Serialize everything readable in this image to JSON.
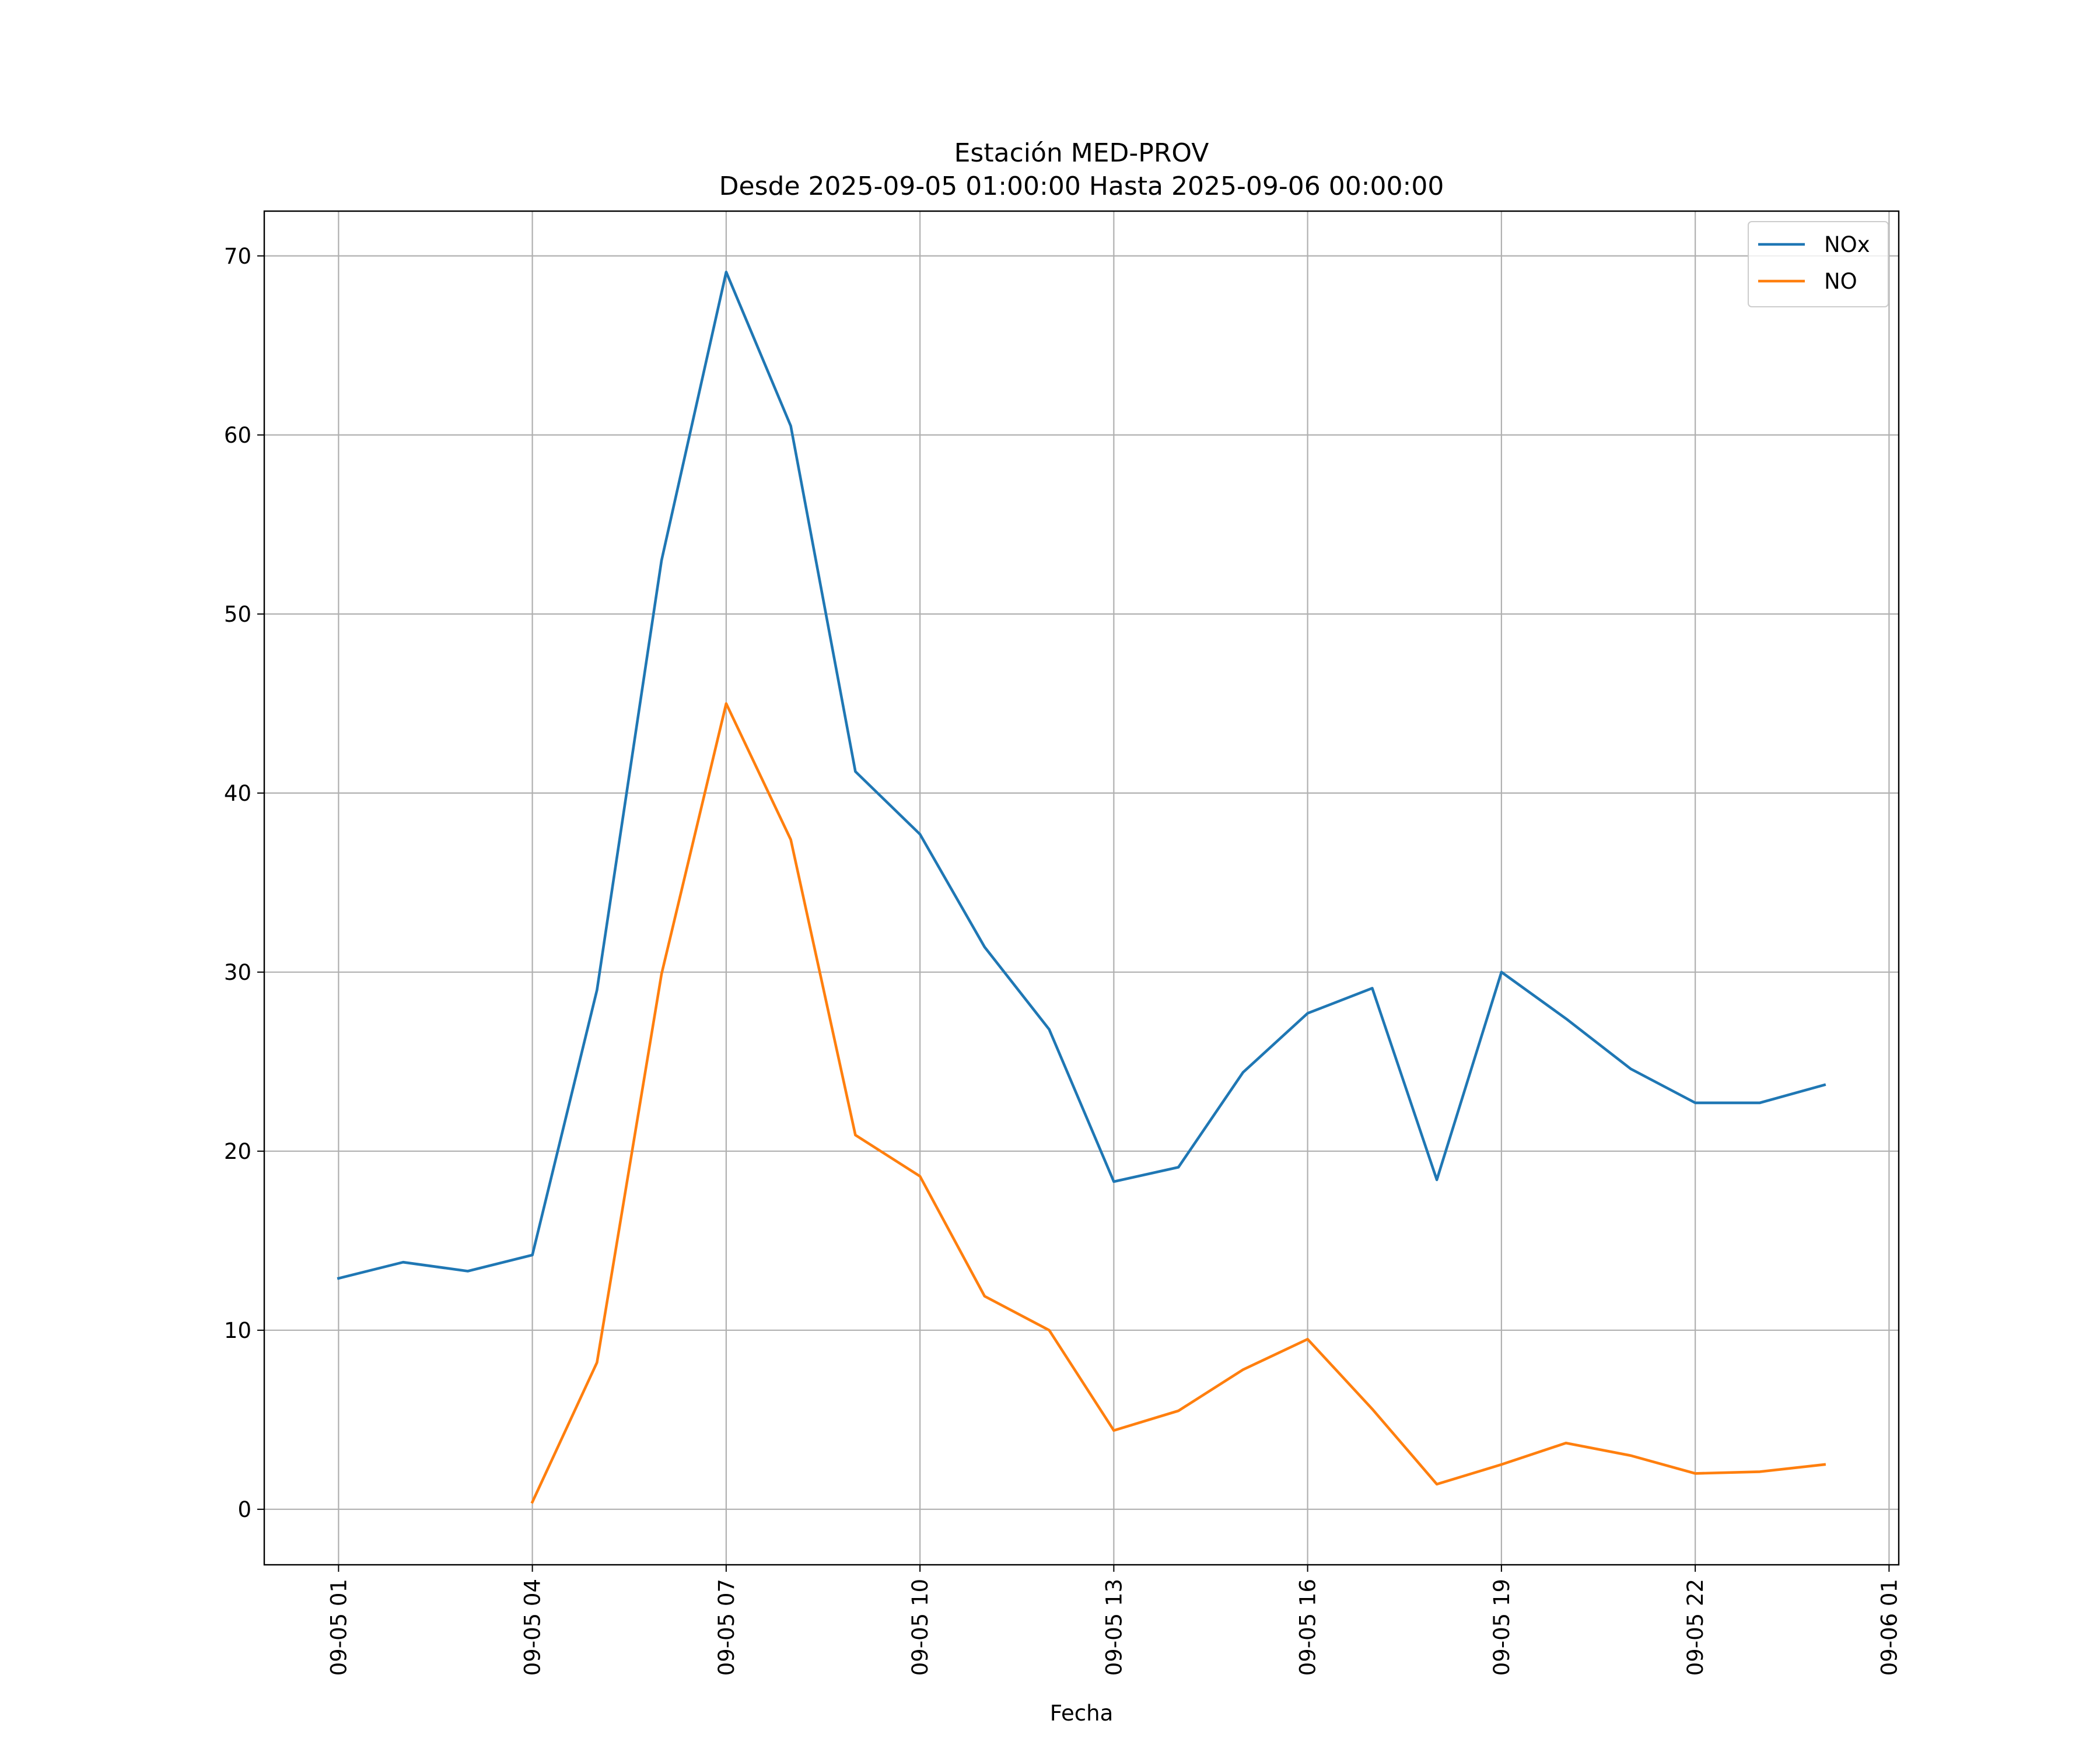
{
  "chart_data": {
    "type": "line",
    "title": "Estación MED-PROV",
    "subtitle": "Desde 2025-09-05 01:00:00 Hasta 2025-09-06 00:00:00",
    "xlabel": "Fecha",
    "ylabel": "",
    "x": [
      "09-05 01",
      "09-05 02",
      "09-05 03",
      "09-05 04",
      "09-05 05",
      "09-05 06",
      "09-05 07",
      "09-05 08",
      "09-05 09",
      "09-05 10",
      "09-05 11",
      "09-05 12",
      "09-05 13",
      "09-05 14",
      "09-05 15",
      "09-05 16",
      "09-05 17",
      "09-05 18",
      "09-05 19",
      "09-05 20",
      "09-05 21",
      "09-05 22",
      "09-05 23",
      "09-06 00"
    ],
    "x_ticks": [
      "09-05 01",
      "09-05 04",
      "09-05 07",
      "09-05 10",
      "09-05 13",
      "09-05 16",
      "09-05 19",
      "09-05 22",
      "09-06 01"
    ],
    "y_ticks": [
      0,
      10,
      20,
      30,
      40,
      50,
      60,
      70
    ],
    "ylim": [
      -3.1,
      72.5
    ],
    "grid": true,
    "legend_position": "top-right",
    "series": [
      {
        "name": "NOx",
        "color": "#1f77b4",
        "values": [
          12.9,
          13.8,
          13.3,
          14.2,
          29.0,
          53.0,
          69.1,
          60.5,
          41.2,
          37.7,
          31.4,
          26.8,
          18.3,
          19.1,
          24.4,
          27.7,
          29.1,
          18.4,
          30.0,
          27.4,
          24.6,
          22.7,
          22.7,
          23.7
        ]
      },
      {
        "name": "NO",
        "color": "#ff7f0e",
        "values": [
          null,
          null,
          null,
          0.4,
          8.2,
          29.9,
          45.0,
          37.4,
          20.9,
          18.6,
          11.9,
          10.0,
          4.4,
          5.5,
          7.8,
          9.5,
          5.6,
          1.4,
          2.5,
          3.7,
          3.0,
          2.0,
          2.1,
          2.5
        ]
      }
    ]
  }
}
